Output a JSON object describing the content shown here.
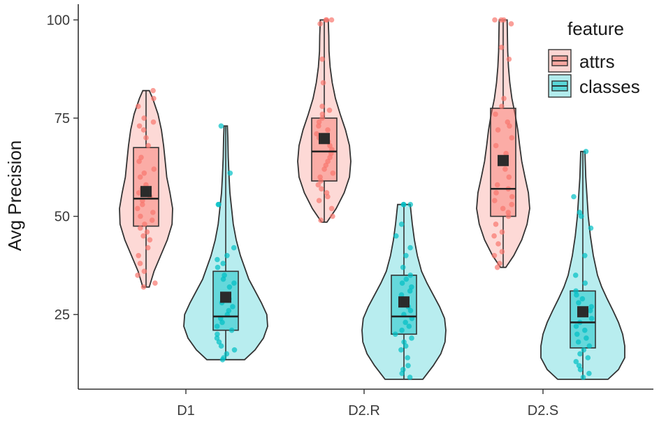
{
  "chart_data": {
    "type": "violin",
    "title": "",
    "xlabel": "",
    "ylabel": "Avg Precision",
    "categories": [
      "D1",
      "D2.R",
      "D2.S"
    ],
    "yticks": [
      25,
      50,
      75,
      100
    ],
    "ylim": [
      6,
      104
    ],
    "grid": false,
    "legend": {
      "title": "feature",
      "position": "top-right",
      "entries": [
        "attrs",
        "classes"
      ]
    },
    "colors": {
      "attrs": "#F8766D",
      "classes": "#00BFC4",
      "mean_marker": "#2b2b2b",
      "outline": "#333333"
    },
    "series": [
      {
        "name": "attrs",
        "groups": [
          {
            "category": "D1",
            "min": 32,
            "q1": 47.5,
            "median": 54.5,
            "q3": 67.5,
            "max": 82,
            "mean": 56.3,
            "density": [
              [
                32,
                0.12
              ],
              [
                36,
                0.3
              ],
              [
                40,
                0.55
              ],
              [
                44,
                0.8
              ],
              [
                48,
                0.98
              ],
              [
                52,
                1.0
              ],
              [
                56,
                0.9
              ],
              [
                60,
                0.78
              ],
              [
                64,
                0.72
              ],
              [
                68,
                0.66
              ],
              [
                72,
                0.58
              ],
              [
                76,
                0.45
              ],
              [
                80,
                0.25
              ],
              [
                82,
                0.12
              ]
            ],
            "points": [
              82,
              80,
              78,
              75,
              74,
              73,
              72,
              70,
              68,
              65,
              64,
              62,
              61,
              60,
              58,
              57,
              56,
              55,
              54,
              53,
              52,
              51,
              50,
              49,
              48,
              47,
              46,
              45,
              44,
              42,
              40,
              38,
              36,
              35,
              33,
              32
            ]
          },
          {
            "category": "D2.R",
            "min": 48.5,
            "q1": 59,
            "median": 66.5,
            "q3": 75,
            "max": 100,
            "mean": 69.8,
            "density": [
              [
                48.5,
                0.1
              ],
              [
                52,
                0.45
              ],
              [
                56,
                0.75
              ],
              [
                60,
                0.95
              ],
              [
                64,
                1.0
              ],
              [
                68,
                0.95
              ],
              [
                72,
                0.8
              ],
              [
                76,
                0.6
              ],
              [
                80,
                0.42
              ],
              [
                84,
                0.3
              ],
              [
                88,
                0.22
              ],
              [
                92,
                0.18
              ],
              [
                96,
                0.17
              ],
              [
                100,
                0.15
              ]
            ],
            "points": [
              100,
              100,
              100,
              99,
              90,
              84,
              78,
              77,
              76,
              75,
              74,
              73,
              72,
              71,
              70,
              69,
              68,
              67,
              66,
              65,
              64,
              63,
              62,
              61,
              60,
              59,
              58,
              57,
              56,
              55,
              54,
              52,
              50,
              49
            ]
          },
          {
            "category": "D2.S",
            "min": 37,
            "q1": 50,
            "median": 57,
            "q3": 77.5,
            "max": 100,
            "mean": 64.2,
            "density": [
              [
                37,
                0.1
              ],
              [
                40,
                0.4
              ],
              [
                44,
                0.7
              ],
              [
                48,
                0.9
              ],
              [
                52,
                1.0
              ],
              [
                56,
                0.95
              ],
              [
                60,
                0.82
              ],
              [
                64,
                0.7
              ],
              [
                68,
                0.62
              ],
              [
                72,
                0.55
              ],
              [
                76,
                0.45
              ],
              [
                80,
                0.33
              ],
              [
                84,
                0.25
              ],
              [
                88,
                0.2
              ],
              [
                92,
                0.17
              ],
              [
                96,
                0.16
              ],
              [
                100,
                0.15
              ]
            ],
            "points": [
              100,
              100,
              100,
              99,
              93,
              90,
              80,
              78,
              76,
              74,
              73,
              72,
              70,
              68,
              66,
              64,
              62,
              60,
              58,
              57,
              56,
              55,
              54,
              53,
              52,
              51,
              50,
              48,
              46,
              45,
              43,
              41,
              40,
              38,
              37
            ]
          }
        ]
      },
      {
        "name": "classes",
        "groups": [
          {
            "category": "D1",
            "min": 13.5,
            "q1": 21,
            "median": 24.5,
            "q3": 36,
            "max": 73,
            "mean": 29.4,
            "density": [
              [
                13.5,
                0.45
              ],
              [
                16,
                0.7
              ],
              [
                19,
                0.9
              ],
              [
                22,
                1.0
              ],
              [
                25,
                0.98
              ],
              [
                28,
                0.85
              ],
              [
                31,
                0.7
              ],
              [
                34,
                0.55
              ],
              [
                37,
                0.45
              ],
              [
                40,
                0.35
              ],
              [
                44,
                0.25
              ],
              [
                48,
                0.18
              ],
              [
                52,
                0.14
              ],
              [
                56,
                0.1
              ],
              [
                60,
                0.08
              ],
              [
                65,
                0.06
              ],
              [
                70,
                0.05
              ],
              [
                73,
                0.04
              ]
            ],
            "points": [
              73,
              61,
              53,
              53,
              42,
              40,
              39,
              38,
              37,
              35,
              34,
              33,
              32,
              30,
              29,
              28,
              27,
              26,
              25,
              24,
              23,
              22,
              21,
              20,
              19,
              18,
              17,
              16,
              15,
              14,
              13.5
            ]
          },
          {
            "category": "D2.R",
            "min": 8.5,
            "q1": 20,
            "median": 24.5,
            "q3": 35,
            "max": 53,
            "mean": 28.2,
            "density": [
              [
                8.5,
                0.45
              ],
              [
                12,
                0.7
              ],
              [
                15,
                0.88
              ],
              [
                18,
                0.98
              ],
              [
                21,
                1.0
              ],
              [
                24,
                0.97
              ],
              [
                27,
                0.85
              ],
              [
                30,
                0.7
              ],
              [
                33,
                0.55
              ],
              [
                36,
                0.42
              ],
              [
                40,
                0.32
              ],
              [
                44,
                0.25
              ],
              [
                48,
                0.2
              ],
              [
                53,
                0.15
              ]
            ],
            "points": [
              53,
              53,
              53,
              48,
              45,
              42,
              40,
              37,
              35,
              34,
              33,
              32,
              31,
              30,
              29,
              28,
              27,
              26,
              25,
              24,
              23,
              22,
              21,
              20,
              19,
              18,
              17,
              16,
              14,
              12,
              11,
              10,
              9
            ]
          },
          {
            "category": "D2.S",
            "min": 8.5,
            "q1": 16.5,
            "median": 23,
            "q3": 31,
            "max": 66.5,
            "mean": 25.7,
            "density": [
              [
                8.5,
                0.6
              ],
              [
                11,
                0.85
              ],
              [
                14,
                1.0
              ],
              [
                17,
                1.0
              ],
              [
                20,
                0.95
              ],
              [
                23,
                0.85
              ],
              [
                26,
                0.72
              ],
              [
                29,
                0.58
              ],
              [
                32,
                0.45
              ],
              [
                35,
                0.35
              ],
              [
                40,
                0.25
              ],
              [
                45,
                0.18
              ],
              [
                50,
                0.13
              ],
              [
                55,
                0.1
              ],
              [
                60,
                0.07
              ],
              [
                66.5,
                0.05
              ]
            ],
            "points": [
              66.5,
              55,
              51,
              50,
              47,
              40,
              35,
              33,
              31,
              30,
              29,
              28,
              27,
              26,
              25,
              24,
              23,
              22,
              21,
              20,
              19,
              18,
              17,
              16,
              15,
              14,
              13,
              12,
              11,
              10,
              9
            ]
          }
        ]
      }
    ]
  }
}
